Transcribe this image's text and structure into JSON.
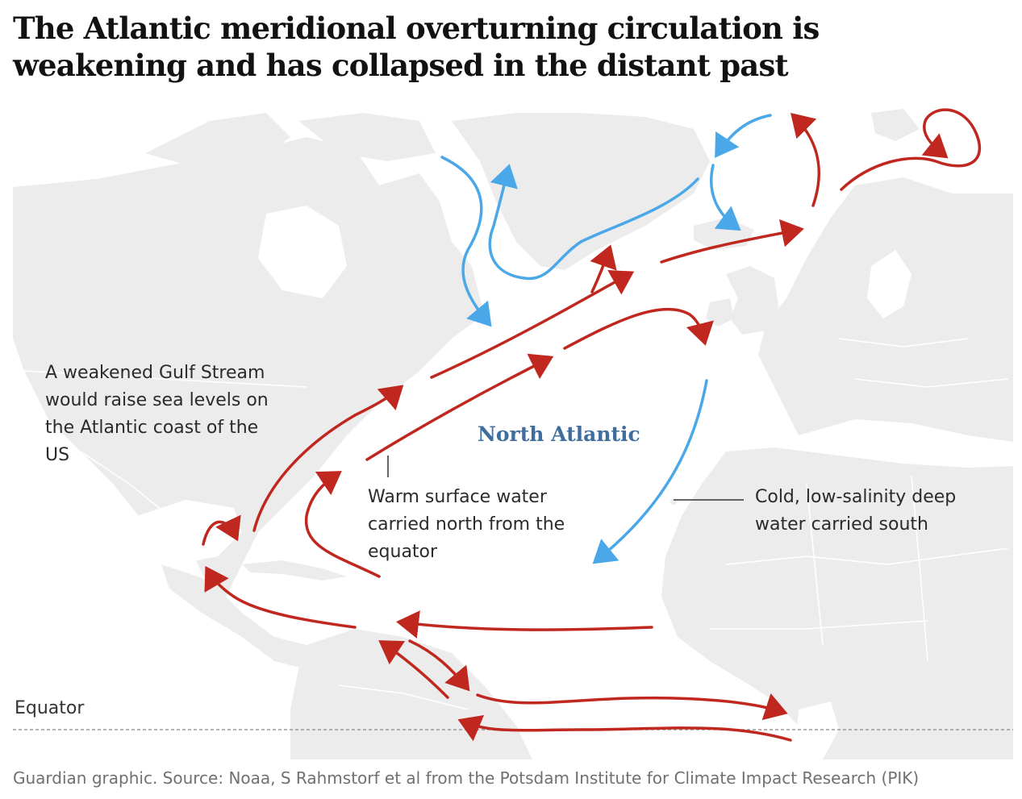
{
  "title": "The Atlantic meridional overturning circulation is weakening and has collapsed in the distant past",
  "map": {
    "ocean_label": "North Atlantic",
    "equator_label": "Equator",
    "annotations": {
      "gulf_stream": "A weakened Gulf Stream would raise sea levels on the Atlantic coast of the US",
      "warm_water": "Warm surface water carried north from the equator",
      "cold_water": "Cold, low-salinity deep water carried south"
    },
    "colors": {
      "land": "#ececec",
      "ocean": "#ffffff",
      "borders": "#ffffff",
      "warm_current": "#c0271f",
      "cold_current": "#4aa8e8",
      "equator_line": "#999999",
      "ocean_label": "#3f6e9e"
    },
    "legend_meaning": {
      "warm_current": "red arrows",
      "cold_current": "blue arrows"
    }
  },
  "source": "Guardian graphic. Source: Noaa, S Rahmstorf et al from the Potsdam Institute for Climate Impact Research (PIK)"
}
